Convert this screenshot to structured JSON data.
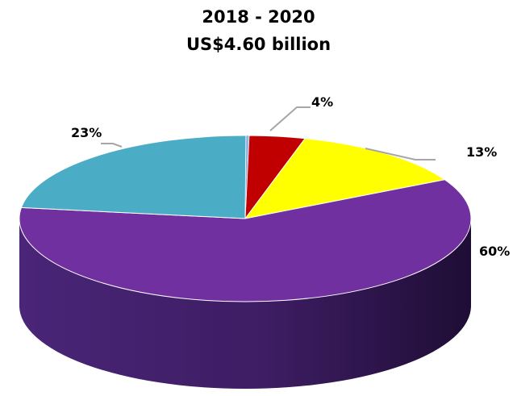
{
  "chart_data": {
    "type": "pie",
    "style": "3d",
    "title": "2018 - 2020",
    "subtitle": "US$4.60 billion",
    "legend": "none",
    "slices": [
      {
        "value": 4,
        "label": "4%",
        "color": "#c00000"
      },
      {
        "value": 13,
        "label": "13%",
        "color": "#ffff00"
      },
      {
        "value": 60,
        "label": "60%",
        "color": "#7030a0"
      },
      {
        "value": 23,
        "label": "23%",
        "color": "#4bacc6"
      }
    ],
    "sliver_color": "#8eb4e3"
  }
}
